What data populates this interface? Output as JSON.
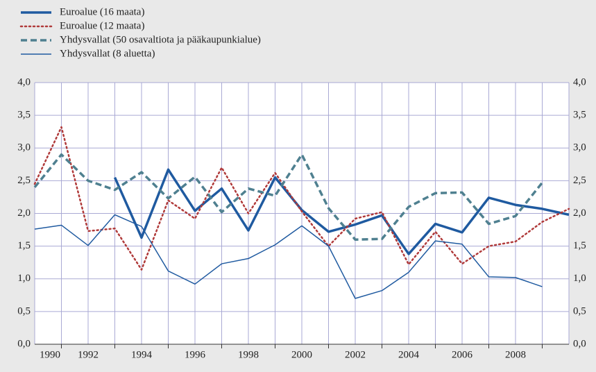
{
  "chart_data": {
    "type": "line",
    "xlim": [
      1990,
      2010
    ],
    "xticks": [
      1990,
      1992,
      1994,
      1996,
      1998,
      2000,
      2002,
      2004,
      2006,
      2008
    ],
    "ylim": [
      0,
      4
    ],
    "yticks": [
      {
        "value": 0,
        "label": "0,0"
      },
      {
        "value": 0.5,
        "label": "0,5"
      },
      {
        "value": 1,
        "label": "1,0"
      },
      {
        "value": 1.5,
        "label": "1,5"
      },
      {
        "value": 2,
        "label": "2,0"
      },
      {
        "value": 2.5,
        "label": "2,5"
      },
      {
        "value": 3,
        "label": "3,0"
      },
      {
        "value": 3.5,
        "label": "3,5"
      },
      {
        "value": 4,
        "label": "4,0"
      }
    ],
    "grid": true,
    "legend": "top-left",
    "series": [
      {
        "name": "Euroalue (16 maata)",
        "color": "#1f5aa0",
        "line_width": 3.5,
        "line_style": "solid",
        "x": [
          1993,
          1994,
          1995,
          1996,
          1997,
          1998,
          1999,
          2000,
          2001,
          2002,
          2003,
          2004,
          2005,
          2006,
          2007,
          2008,
          2009,
          2010
        ],
        "values": [
          2.55,
          1.63,
          2.67,
          2.04,
          2.38,
          1.74,
          2.55,
          2.05,
          1.72,
          1.83,
          1.97,
          1.38,
          1.84,
          1.71,
          2.24,
          2.13,
          2.07,
          1.98
        ]
      },
      {
        "name": "Euroalue (12 maata)",
        "color": "#b03a3a",
        "line_width": 2.5,
        "line_style": "dotted",
        "x": [
          1990,
          1991,
          1992,
          1993,
          1994,
          1995,
          1996,
          1997,
          1998,
          1999,
          2000,
          2001,
          2002,
          2003,
          2004,
          2005,
          2006,
          2007,
          2008,
          2009,
          2010
        ],
        "values": [
          2.45,
          3.32,
          1.73,
          1.77,
          1.14,
          2.2,
          1.92,
          2.7,
          2.0,
          2.62,
          2.03,
          1.5,
          1.92,
          2.02,
          1.22,
          1.72,
          1.23,
          1.5,
          1.57,
          1.87,
          2.07
        ]
      },
      {
        "name": "Yhdysvallat (50 osavaltiota ja pääkaupunkialue)",
        "color": "#4f8090",
        "line_width": 3.5,
        "line_style": "dashed",
        "x": [
          1990,
          1991,
          1992,
          1993,
          1994,
          1995,
          1996,
          1997,
          1998,
          1999,
          2000,
          2001,
          2002,
          2003,
          2004,
          2005,
          2006,
          2007,
          2008,
          2009
        ],
        "values": [
          2.4,
          2.9,
          2.5,
          2.36,
          2.63,
          2.23,
          2.56,
          2.02,
          2.38,
          2.27,
          2.9,
          2.08,
          1.6,
          1.61,
          2.1,
          2.31,
          2.32,
          1.84,
          1.96,
          2.47
        ]
      },
      {
        "name": "Yhdysvallat (8 aluetta)",
        "color": "#1f5aa0",
        "line_width": 1.5,
        "line_style": "solid",
        "x": [
          1990,
          1991,
          1992,
          1993,
          1994,
          1995,
          1996,
          1997,
          1998,
          1999,
          2000,
          2001,
          2002,
          2003,
          2004,
          2005,
          2006,
          2007,
          2008,
          2009
        ],
        "values": [
          1.76,
          1.82,
          1.51,
          1.98,
          1.8,
          1.12,
          0.92,
          1.23,
          1.31,
          1.52,
          1.81,
          1.5,
          0.7,
          0.82,
          1.1,
          1.58,
          1.53,
          1.03,
          1.02,
          0.88
        ]
      }
    ]
  }
}
